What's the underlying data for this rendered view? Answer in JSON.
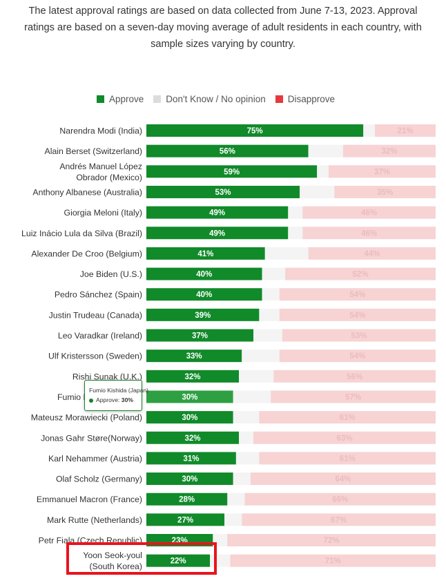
{
  "intro": {
    "lines": [
      "The latest approval ratings are based on data collected from June 7-13, 2023. Approval",
      "ratings are based on a seven-day moving average of adult residents in each country, with",
      "sample sizes varying by country."
    ]
  },
  "colors": {
    "approve": "#118a2a",
    "approve_hover": "#2ea043",
    "dont_know": "#f3f4f3",
    "disapprove": "#f7d3d4",
    "disapprove_label": "#ebbcbe",
    "legend_dont_know": "#dcdcdc",
    "legend_disapprove": "#e5393f",
    "highlight": "#e8141d"
  },
  "legend": {
    "approve": "Approve",
    "dont_know": "Don't Know / No opinion",
    "disapprove": "Disapprove"
  },
  "tooltip": {
    "title": "Fumio Kishida (Japan)",
    "label": "Approve:",
    "value": "30%"
  },
  "chart_data": {
    "type": "bar",
    "orientation": "horizontal",
    "stacked": true,
    "xlim": [
      0,
      100
    ],
    "grid": false,
    "legend_position": "top",
    "categories": [
      "Narendra Modi (India)",
      "Alain Berset (Switzerland)",
      "Andrés Manuel López Obrador (Mexico)",
      "Anthony Albanese (Australia)",
      "Giorgia Meloni (Italy)",
      "Luiz Inácio Lula da Silva (Brazil)",
      "Alexander De Croo (Belgium)",
      "Joe Biden (U.S.)",
      "Pedro Sánchez (Spain)",
      "Justin Trudeau (Canada)",
      "Leo Varadkar (Ireland)",
      "Ulf Kristersson (Sweden)",
      "Rishi Sunak (U.K.)",
      "Fumio Kishida (Japan)",
      "Mateusz Morawiecki (Poland)",
      "Jonas Gahr Støre(Norway)",
      "Karl Nehammer (Austria)",
      "Olaf Scholz (Germany)",
      "Emmanuel Macron (France)",
      "Mark Rutte (Netherlands)",
      "Petr Fiala (Czech Republic)",
      "Yoon Seok-youl (South Korea)"
    ],
    "label_lines": [
      [
        "Narendra Modi (India)"
      ],
      [
        "Alain Berset (Switzerland)"
      ],
      [
        "Andrés Manuel López",
        "Obrador (Mexico)"
      ],
      [
        "Anthony Albanese (Australia)"
      ],
      [
        "Giorgia Meloni (Italy)"
      ],
      [
        "Luiz Inácio Lula da Silva (Brazil)"
      ],
      [
        "Alexander De Croo (Belgium)"
      ],
      [
        "Joe Biden (U.S.)"
      ],
      [
        "Pedro Sánchez (Spain)"
      ],
      [
        "Justin Trudeau (Canada)"
      ],
      [
        "Leo Varadkar (Ireland)"
      ],
      [
        "Ulf Kristersson (Sweden)"
      ],
      [
        "Rishi Sunak (U.K.)"
      ],
      [
        "Fumio Kishida (Japan)"
      ],
      [
        "Mateusz Morawiecki (Poland)"
      ],
      [
        "Jonas Gahr Støre(Norway)"
      ],
      [
        "Karl Nehammer (Austria)"
      ],
      [
        "Olaf Scholz (Germany)"
      ],
      [
        "Emmanuel Macron (France)"
      ],
      [
        "Mark Rutte (Netherlands)"
      ],
      [
        "Petr Fiala (Czech Republic)"
      ],
      [
        "Yoon Seok-youl",
        "(South Korea)"
      ]
    ],
    "series": [
      {
        "name": "Approve",
        "values": [
          75,
          56,
          59,
          53,
          49,
          49,
          41,
          40,
          40,
          39,
          37,
          33,
          32,
          30,
          30,
          32,
          31,
          30,
          28,
          27,
          23,
          22
        ]
      },
      {
        "name": "Don't Know / No opinion",
        "values": [
          4,
          12,
          4,
          12,
          5,
          5,
          15,
          8,
          6,
          7,
          10,
          13,
          12,
          13,
          9,
          5,
          8,
          6,
          6,
          6,
          5,
          7
        ]
      },
      {
        "name": "Disapprove",
        "values": [
          21,
          32,
          37,
          35,
          46,
          46,
          44,
          52,
          54,
          54,
          53,
          54,
          56,
          57,
          61,
          63,
          61,
          64,
          66,
          67,
          72,
          71
        ]
      }
    ],
    "disapprove_labels": [
      "21%",
      "32%",
      "37%",
      "35%",
      "46%",
      "46%",
      "44%",
      "52%",
      "54%",
      "54%",
      "53%",
      "54%",
      "56%",
      "57%",
      "61%",
      "63%",
      "61%",
      "64%",
      "66%",
      "67%",
      "72%",
      "71%"
    ],
    "highlighted_category": "Yoon Seok-youl (South Korea)",
    "hovered_category": "Fumio Kishida (Japan)"
  }
}
